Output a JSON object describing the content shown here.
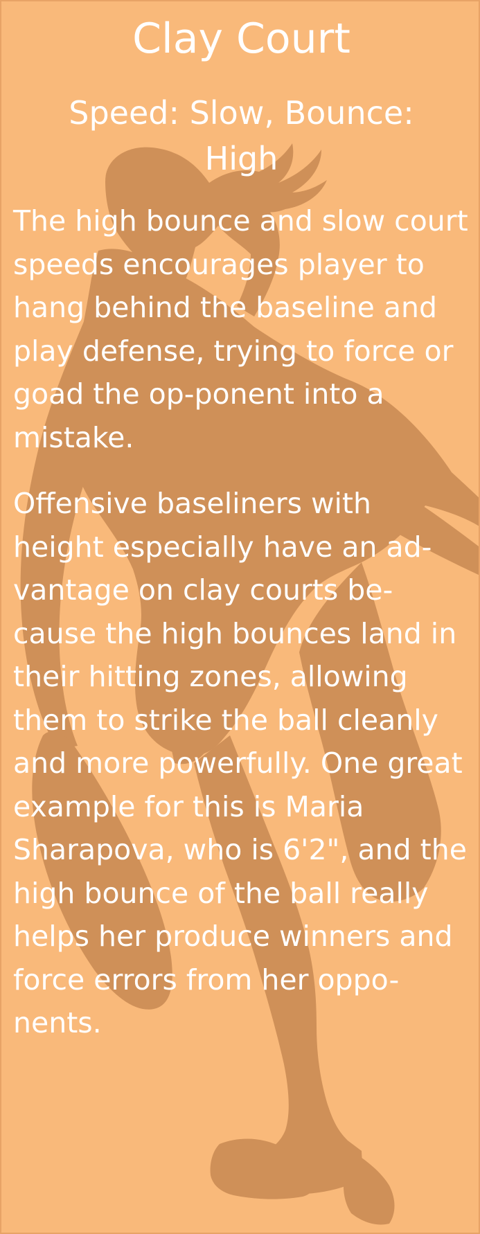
{
  "panel": {
    "title": "Clay Court",
    "subtitle": "Speed: Slow, Bounce: High",
    "paragraphs": [
      "The high bounce and slow court speeds encourages player to hang behind the baseline and play defense, trying to force or goad the op-ponent into a mistake.",
      "Offensive baseliners with height especially have an ad-vantage on clay courts be-cause the high bounces land in their hitting zones, allowing them to strike the ball cleanly and more powerfully. One great example for this is Maria Sharapova, who is 6'2\", and the high bounce of the ball really helps her produce winners and force errors from her oppo-nents."
    ]
  },
  "colors": {
    "background": "#f9b97a",
    "silhouette": "#cf9058",
    "text": "#ffffff"
  },
  "image": {
    "silhouette": "tennis-player-silhouette"
  }
}
